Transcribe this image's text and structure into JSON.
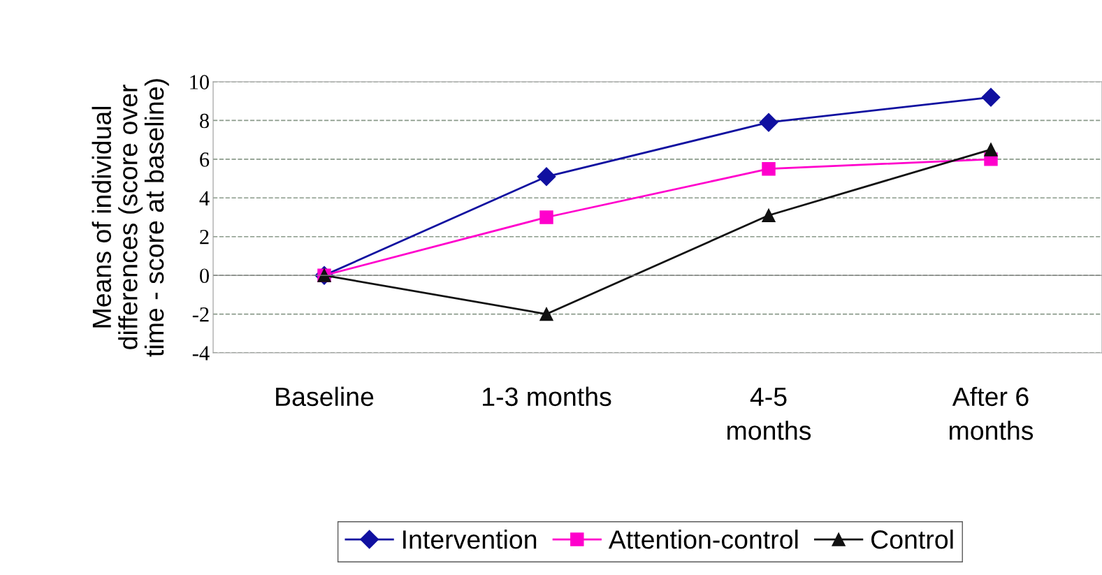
{
  "chart_data": {
    "type": "line",
    "ylabel": "Means of individual\ndifferences (score over\ntime - score at baseline)",
    "categories": [
      "Baseline",
      "1-3 months",
      "4-5\nmonths",
      "After 6\nmonths"
    ],
    "series": [
      {
        "name": "Intervention",
        "color": "#1010a0",
        "marker": "diamond",
        "values": [
          0,
          5.1,
          7.9,
          9.2
        ]
      },
      {
        "name": "Attention-control",
        "color": "#ff00cc",
        "marker": "square",
        "values": [
          0,
          3.0,
          5.5,
          6.0
        ]
      },
      {
        "name": "Control",
        "color": "#111111",
        "marker": "triangle",
        "values": [
          0,
          -2.0,
          3.1,
          6.5
        ]
      }
    ],
    "ylim": [
      -4,
      10
    ],
    "yticks": [
      -4,
      -2,
      0,
      2,
      4,
      6,
      8,
      10
    ],
    "grid": "y",
    "legend": "bottom",
    "line_style": "solid"
  }
}
